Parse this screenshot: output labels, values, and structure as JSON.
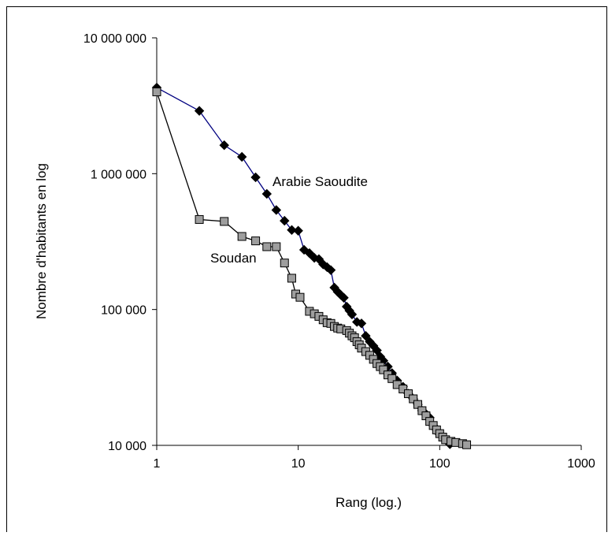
{
  "chart_data": {
    "type": "scatter",
    "title": "",
    "xlabel": "Rang (log.)",
    "ylabel": "Nombre d'habitants en log",
    "x_scale": "log",
    "y_scale": "log",
    "xlim": [
      1,
      1000
    ],
    "ylim": [
      10000,
      10000000
    ],
    "x_ticks": [
      {
        "value": 1,
        "label": "1"
      },
      {
        "value": 10,
        "label": "10"
      },
      {
        "value": 100,
        "label": "100"
      },
      {
        "value": 1000,
        "label": "1000"
      }
    ],
    "y_ticks": [
      {
        "value": 10000,
        "label": "10 000"
      },
      {
        "value": 100000,
        "label": "100 000"
      },
      {
        "value": 1000000,
        "label": "1 000 000"
      },
      {
        "value": 10000000,
        "label": "10 000 000"
      }
    ],
    "grid": false,
    "legend": "none (series labelled directly on the chart)",
    "series": [
      {
        "name": "Arabie Saoudite",
        "marker": "diamond",
        "marker_color": "#000000",
        "line_color": "#000080",
        "points": [
          [
            1,
            4300000
          ],
          [
            2,
            2900000
          ],
          [
            3,
            1620000
          ],
          [
            4,
            1330000
          ],
          [
            5,
            940000
          ],
          [
            6,
            710000
          ],
          [
            7,
            540000
          ],
          [
            8,
            450000
          ],
          [
            9,
            385000
          ],
          [
            10,
            380000
          ],
          [
            11,
            275000
          ],
          [
            12,
            260000
          ],
          [
            13,
            240000
          ],
          [
            14,
            235000
          ],
          [
            15,
            215000
          ],
          [
            16,
            205000
          ],
          [
            17,
            195000
          ],
          [
            18,
            145000
          ],
          [
            19,
            135000
          ],
          [
            20,
            128000
          ],
          [
            21,
            122000
          ],
          [
            22,
            105000
          ],
          [
            23,
            98000
          ],
          [
            24,
            92000
          ],
          [
            26,
            81000
          ],
          [
            28,
            79000
          ],
          [
            30,
            64000
          ],
          [
            32,
            58000
          ],
          [
            34,
            54000
          ],
          [
            36,
            50000
          ],
          [
            38,
            45000
          ],
          [
            40,
            42000
          ],
          [
            43,
            38000
          ],
          [
            46,
            34000
          ],
          [
            50,
            30000
          ],
          [
            55,
            27000
          ],
          [
            60,
            24000
          ],
          [
            65,
            22000
          ],
          [
            70,
            20000
          ],
          [
            75,
            18000
          ],
          [
            80,
            17000
          ],
          [
            85,
            16000
          ],
          [
            90,
            14000
          ],
          [
            95,
            13000
          ],
          [
            100,
            12000
          ],
          [
            105,
            11500
          ],
          [
            110,
            11000
          ],
          [
            115,
            10600
          ],
          [
            118,
            10200
          ]
        ]
      },
      {
        "name": "Soudan",
        "marker": "square",
        "marker_color": "#9e9e9e",
        "line_color": "#000000",
        "points": [
          [
            1,
            4000000
          ],
          [
            2,
            460000
          ],
          [
            3,
            445000
          ],
          [
            4,
            345000
          ],
          [
            5,
            320000
          ],
          [
            6,
            290000
          ],
          [
            7,
            290000
          ],
          [
            8,
            220000
          ],
          [
            9,
            170000
          ],
          [
            9.6,
            130000
          ],
          [
            10.3,
            123000
          ],
          [
            12,
            97000
          ],
          [
            13,
            93000
          ],
          [
            14,
            89000
          ],
          [
            15,
            84000
          ],
          [
            16,
            80000
          ],
          [
            17,
            79000
          ],
          [
            18,
            75000
          ],
          [
            19,
            73000
          ],
          [
            20,
            72000
          ],
          [
            22,
            70000
          ],
          [
            23,
            67000
          ],
          [
            24,
            64000
          ],
          [
            25,
            62000
          ],
          [
            26,
            58000
          ],
          [
            27,
            55000
          ],
          [
            28,
            52000
          ],
          [
            30,
            49000
          ],
          [
            32,
            46000
          ],
          [
            34,
            43000
          ],
          [
            36,
            40000
          ],
          [
            38,
            38000
          ],
          [
            40,
            36000
          ],
          [
            43,
            33000
          ],
          [
            46,
            31000
          ],
          [
            50,
            28000
          ],
          [
            55,
            26000
          ],
          [
            60,
            24000
          ],
          [
            65,
            22000
          ],
          [
            70,
            20000
          ],
          [
            75,
            18000
          ],
          [
            80,
            16500
          ],
          [
            85,
            15000
          ],
          [
            90,
            14000
          ],
          [
            95,
            13000
          ],
          [
            100,
            12200
          ],
          [
            105,
            11500
          ],
          [
            110,
            11000
          ],
          [
            120,
            10700
          ],
          [
            130,
            10500
          ],
          [
            145,
            10300
          ],
          [
            155,
            10100
          ]
        ]
      }
    ],
    "annotations": [
      {
        "text": "Arabie Saoudite",
        "x": 11,
        "y": 800000
      },
      {
        "text": "Soudan",
        "x": 4.5,
        "y": 210000
      }
    ]
  }
}
